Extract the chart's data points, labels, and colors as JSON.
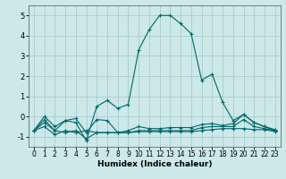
{
  "xlabel": "Humidex (Indice chaleur)",
  "xlim": [
    -0.5,
    23.5
  ],
  "ylim": [
    -1.5,
    5.5
  ],
  "yticks": [
    -1,
    0,
    1,
    2,
    3,
    4,
    5
  ],
  "xticks": [
    0,
    1,
    2,
    3,
    4,
    5,
    6,
    7,
    8,
    9,
    10,
    11,
    12,
    13,
    14,
    15,
    16,
    17,
    18,
    19,
    20,
    21,
    22,
    23
  ],
  "bg_color": "#cce8e8",
  "grid_color": "#aacccc",
  "line_color": "#006868",
  "series": [
    [
      -0.7,
      -0.5,
      -0.9,
      -0.7,
      -0.8,
      -0.7,
      -0.8,
      -0.8,
      -0.8,
      -0.8,
      -0.75,
      -0.75,
      -0.75,
      -0.75,
      -0.75,
      -0.75,
      -0.7,
      -0.65,
      -0.6,
      -0.6,
      -0.6,
      -0.65,
      -0.65,
      -0.75
    ],
    [
      -0.7,
      -0.3,
      -0.7,
      -0.8,
      -0.7,
      -1.1,
      -0.8,
      -0.8,
      -0.8,
      -0.8,
      -0.7,
      -0.7,
      -0.7,
      -0.7,
      -0.7,
      -0.7,
      -0.55,
      -0.5,
      -0.5,
      -0.5,
      -0.15,
      -0.5,
      -0.6,
      -0.7
    ],
    [
      -0.7,
      -0.15,
      -0.7,
      -0.2,
      -0.1,
      -0.8,
      -0.15,
      -0.2,
      -0.8,
      -0.7,
      -0.5,
      -0.6,
      -0.6,
      -0.55,
      -0.55,
      -0.55,
      -0.4,
      -0.35,
      -0.45,
      -0.35,
      0.1,
      -0.3,
      -0.5,
      -0.65
    ],
    [
      -0.7,
      0.0,
      -0.5,
      -0.2,
      -0.3,
      -1.2,
      0.5,
      0.8,
      0.4,
      0.6,
      3.3,
      4.3,
      5.0,
      5.0,
      4.6,
      4.1,
      1.8,
      2.1,
      0.7,
      -0.2,
      0.1,
      -0.3,
      -0.5,
      -0.7
    ]
  ]
}
